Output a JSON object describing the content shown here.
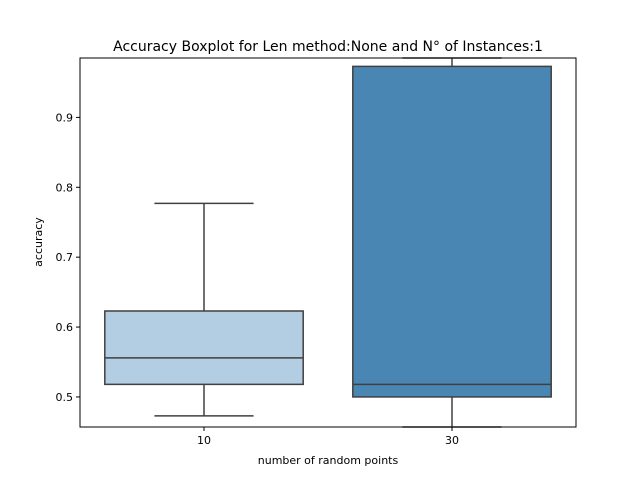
{
  "chart_data": {
    "type": "boxplot",
    "title": "Accuracy Boxplot for Len method:None and N° of Instances:1",
    "xlabel": "number of random points",
    "ylabel": "accuracy",
    "categories": [
      "10",
      "30"
    ],
    "ylim": [
      0.457,
      0.985
    ],
    "yticks": [
      0.5,
      0.6,
      0.7,
      0.8,
      0.9
    ],
    "ytick_labels": [
      "0.5",
      "0.6",
      "0.7",
      "0.8",
      "0.9"
    ],
    "grid": false,
    "boxes": [
      {
        "category": "10",
        "whisker_low": 0.473,
        "q1": 0.518,
        "median": 0.556,
        "q3": 0.623,
        "whisker_high": 0.777,
        "color": "#b3cde3"
      },
      {
        "category": "30",
        "whisker_low": 0.457,
        "q1": 0.5,
        "median": 0.518,
        "q3": 0.973,
        "whisker_high": 0.985,
        "color": "#4a86b4"
      }
    ],
    "line_color": "#404040"
  }
}
